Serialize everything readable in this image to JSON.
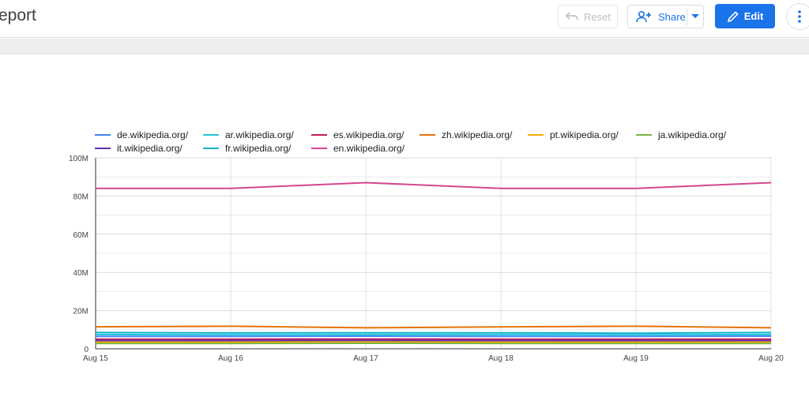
{
  "header": {
    "title": "eport",
    "reset_label": "Reset",
    "share_label": "Share",
    "edit_label": "Edit"
  },
  "icons": {
    "reset": "undo-icon",
    "share": "person-add-icon",
    "share_dropdown": "caret-down-icon",
    "edit": "pencil-icon",
    "more": "more-vert-icon"
  },
  "colors": {
    "accent": "#1a73e8"
  },
  "chart_data": {
    "type": "line",
    "x": [
      "Aug 15",
      "Aug 16",
      "Aug 17",
      "Aug 18",
      "Aug 19",
      "Aug 20"
    ],
    "ylim": [
      0,
      100000000
    ],
    "yticks": [
      {
        "value": 0,
        "label": "0"
      },
      {
        "value": 20000000,
        "label": "20M"
      },
      {
        "value": 40000000,
        "label": "40M"
      },
      {
        "value": 60000000,
        "label": "60M"
      },
      {
        "value": 80000000,
        "label": "80M"
      },
      {
        "value": 100000000,
        "label": "100M"
      }
    ],
    "grid": true,
    "legend_position": "top",
    "series": [
      {
        "name": "de.wikipedia.org/",
        "color": "#4285f4",
        "values": [
          6500000,
          6500000,
          6600000,
          6500000,
          6500000,
          6600000
        ]
      },
      {
        "name": "ar.wikipedia.org/",
        "color": "#26c6da",
        "values": [
          7500000,
          7300000,
          7400000,
          7400000,
          7300000,
          7500000
        ]
      },
      {
        "name": "es.wikipedia.org/",
        "color": "#c2185b",
        "values": [
          5000000,
          5000000,
          5100000,
          5000000,
          5000000,
          5000000
        ]
      },
      {
        "name": "zh.wikipedia.org/",
        "color": "#e8710a",
        "values": [
          11500000,
          11800000,
          11000000,
          11500000,
          11800000,
          11000000
        ]
      },
      {
        "name": "pt.wikipedia.org/",
        "color": "#f9ab00",
        "values": [
          3500000,
          3500000,
          3600000,
          3500000,
          3500000,
          3500000
        ]
      },
      {
        "name": "ja.wikipedia.org/",
        "color": "#7cb342",
        "values": [
          2800000,
          2800000,
          2900000,
          2800000,
          2800000,
          2800000
        ]
      },
      {
        "name": "it.wikipedia.org/",
        "color": "#5e35b1",
        "values": [
          4300000,
          4300000,
          4400000,
          4300000,
          4300000,
          4300000
        ]
      },
      {
        "name": "fr.wikipedia.org/",
        "color": "#12b5cb",
        "values": [
          8500000,
          8300000,
          8400000,
          8400000,
          8200000,
          8500000
        ]
      },
      {
        "name": "en.wikipedia.org/",
        "color": "#d6458f",
        "values": [
          84000000,
          84000000,
          87000000,
          84000000,
          84000000,
          87000000
        ]
      }
    ]
  }
}
